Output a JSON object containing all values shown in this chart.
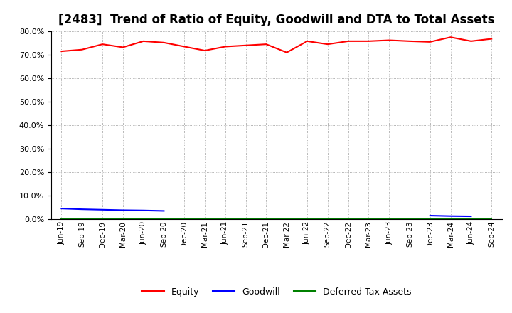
{
  "title": "[2483]  Trend of Ratio of Equity, Goodwill and DTA to Total Assets",
  "x_labels": [
    "Jun-19",
    "Sep-19",
    "Dec-19",
    "Mar-20",
    "Jun-20",
    "Sep-20",
    "Dec-20",
    "Mar-21",
    "Jun-21",
    "Sep-21",
    "Dec-21",
    "Mar-22",
    "Jun-22",
    "Sep-22",
    "Dec-22",
    "Mar-23",
    "Jun-23",
    "Sep-23",
    "Dec-23",
    "Mar-24",
    "Jun-24",
    "Sep-24"
  ],
  "equity": [
    71.5,
    72.2,
    74.5,
    73.2,
    75.8,
    75.2,
    73.5,
    71.8,
    73.5,
    74.0,
    74.5,
    71.0,
    75.8,
    74.5,
    75.8,
    75.8,
    76.2,
    75.8,
    75.5,
    77.5,
    75.8,
    76.8
  ],
  "goodwill": [
    4.5,
    4.2,
    4.0,
    3.8,
    3.7,
    3.5,
    null,
    null,
    null,
    null,
    null,
    null,
    null,
    null,
    null,
    null,
    null,
    null,
    1.5,
    1.3,
    1.2,
    null
  ],
  "dta": [
    0.1,
    0.1,
    0.1,
    0.1,
    0.1,
    0.1,
    0.1,
    0.1,
    0.1,
    0.1,
    0.1,
    0.1,
    0.1,
    0.1,
    0.1,
    0.1,
    0.1,
    0.1,
    0.1,
    0.1,
    0.1,
    0.1
  ],
  "equity_color": "#ff0000",
  "goodwill_color": "#0000ff",
  "dta_color": "#008000",
  "ylim": [
    0,
    80
  ],
  "yticks": [
    0,
    10,
    20,
    30,
    40,
    50,
    60,
    70,
    80
  ],
  "background_color": "#ffffff",
  "grid_color": "#999999",
  "title_fontsize": 12,
  "legend_labels": [
    "Equity",
    "Goodwill",
    "Deferred Tax Assets"
  ]
}
